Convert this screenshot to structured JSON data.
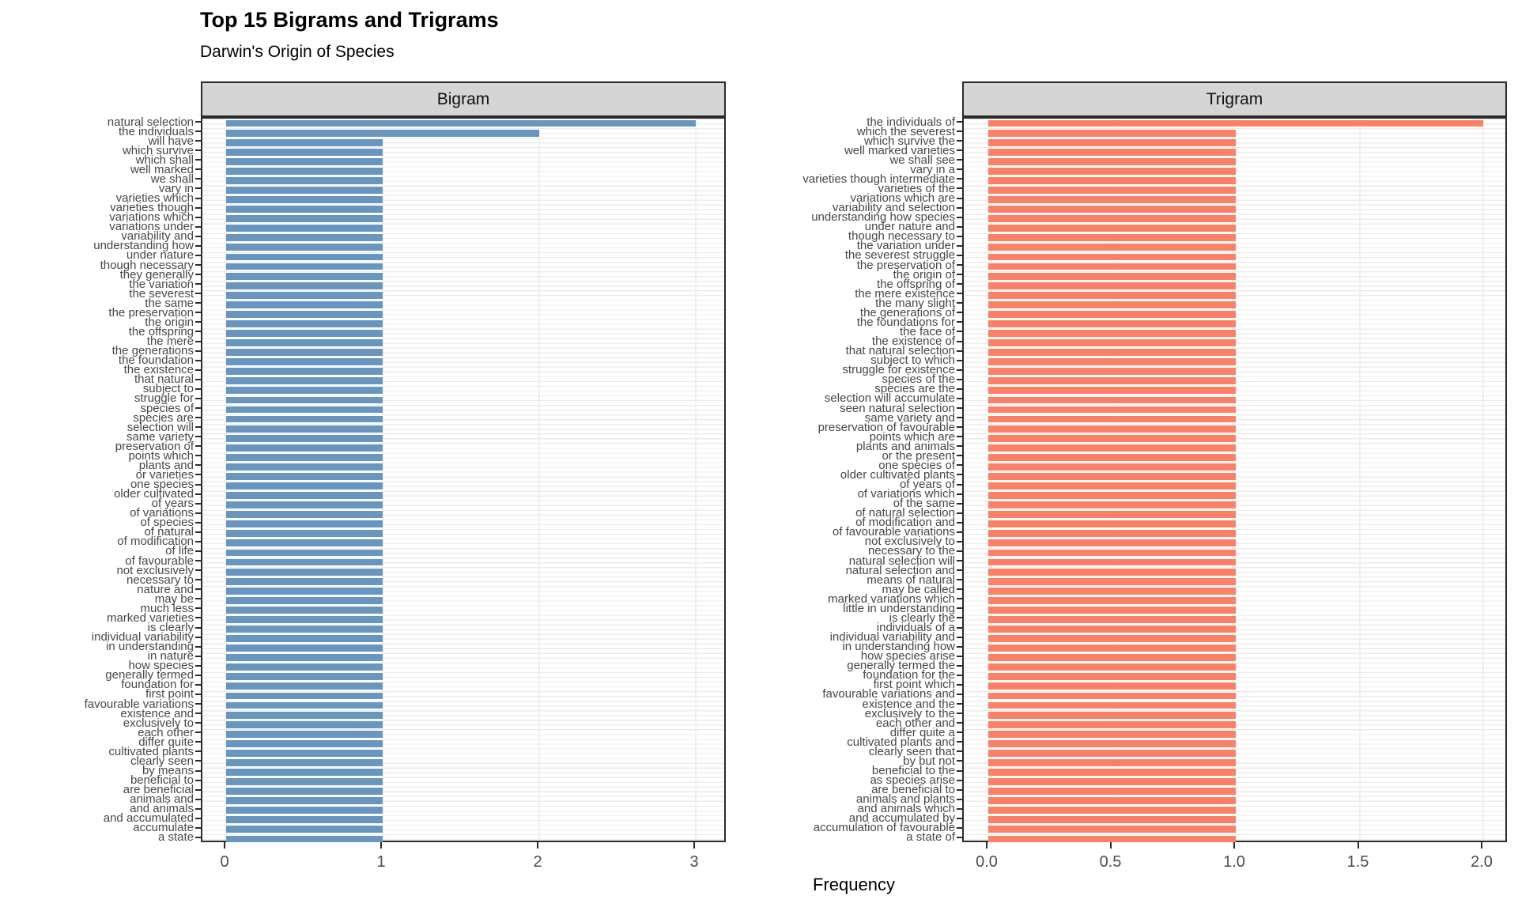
{
  "title": "Top 15 Bigrams and Trigrams",
  "subtitle": "Darwin's Origin of Species",
  "xlabel": "Frequency",
  "colors": {
    "bigram_bar": "#6996BE",
    "trigram_bar": "#FA8168",
    "strip_bg": "#D5D5D5",
    "panel_border": "#2B2B2B",
    "grid": "#EFEFEF",
    "axis_text": "#4D4D4D",
    "label_text": "#474747"
  },
  "chart_data": [
    {
      "type": "bar",
      "orientation": "horizontal",
      "panel": "Bigram",
      "xlabel": "Frequency",
      "x_tick_values": [
        0,
        1,
        2,
        3
      ],
      "x_tick_labels": [
        "0",
        "1",
        "2",
        "3"
      ],
      "xlim": [
        -0.15,
        3.15
      ],
      "grid": "on",
      "categories": [
        "natural selection",
        "the individuals",
        "will have",
        "which survive",
        "which shall",
        "well marked",
        "we shall",
        "vary in",
        "varieties which",
        "varieties though",
        "variations which",
        "variations under",
        "variability and",
        "understanding how",
        "under nature",
        "though necessary",
        "they generally",
        "the variation",
        "the severest",
        "the same",
        "the preservation",
        "the origin",
        "the offspring",
        "the mere",
        "the generations",
        "the foundation",
        "the existence",
        "that natural",
        "subject to",
        "struggle for",
        "species of",
        "species are",
        "selection will",
        "same variety",
        "preservation of",
        "points which",
        "plants and",
        "or varieties",
        "one species",
        "older cultivated",
        "of years",
        "of variations",
        "of species",
        "of natural",
        "of modification",
        "of life",
        "of favourable",
        "not exclusively",
        "necessary to",
        "nature and",
        "may be",
        "much less",
        "marked varieties",
        "is clearly",
        "individual variability",
        "in understanding",
        "in nature",
        "how species",
        "generally termed",
        "foundation for",
        "first point",
        "favourable variations",
        "existence and",
        "exclusively to",
        "each other",
        "differ quite",
        "cultivated plants",
        "clearly seen",
        "by means",
        "beneficial to",
        "are beneficial",
        "animals and",
        "and animals",
        "and accumulated",
        "accumulate",
        "a state"
      ],
      "values": [
        3,
        2,
        1,
        1,
        1,
        1,
        1,
        1,
        1,
        1,
        1,
        1,
        1,
        1,
        1,
        1,
        1,
        1,
        1,
        1,
        1,
        1,
        1,
        1,
        1,
        1,
        1,
        1,
        1,
        1,
        1,
        1,
        1,
        1,
        1,
        1,
        1,
        1,
        1,
        1,
        1,
        1,
        1,
        1,
        1,
        1,
        1,
        1,
        1,
        1,
        1,
        1,
        1,
        1,
        1,
        1,
        1,
        1,
        1,
        1,
        1,
        1,
        1,
        1,
        1,
        1,
        1,
        1,
        1,
        1,
        1,
        1,
        1,
        1,
        1,
        1
      ]
    },
    {
      "type": "bar",
      "orientation": "horizontal",
      "panel": "Trigram",
      "xlabel": "Frequency",
      "x_tick_values": [
        0,
        0.5,
        1,
        1.5,
        2
      ],
      "x_tick_labels": [
        "0.0",
        "0.5",
        "1.0",
        "1.5",
        "2.0"
      ],
      "xlim": [
        -0.1,
        2.1
      ],
      "grid": "on",
      "categories": [
        "the individuals of",
        "which the severest",
        "which survive the",
        "well marked varieties",
        "we shall see",
        "vary in a",
        "varieties though intermediate",
        "varieties of the",
        "variations which are",
        "variability and selection",
        "understanding how species",
        "under nature and",
        "though necessary to",
        "the variation under",
        "the severest struggle",
        "the preservation of",
        "the origin of",
        "the offspring of",
        "the mere existence",
        "the many slight",
        "the generations of",
        "the foundations for",
        "the face of",
        "the existence of",
        "that natural selection",
        "subject to which",
        "struggle for existence",
        "species of the",
        "species are the",
        "selection will accumulate",
        "seen natural selection",
        "same variety and",
        "preservation of favourable",
        "points which are",
        "plants and animals",
        "or the present",
        "one species of",
        "older cultivated plants",
        "of years of",
        "of variations which",
        "of the same",
        "of natural selection",
        "of modification and",
        "of favourable variations",
        "not exclusively to",
        "necessary to the",
        "natural selection will",
        "natural selection and",
        "means of natural",
        "may be called",
        "marked variations which",
        "little in understanding",
        "is clearly the",
        "individuals of a",
        "individual variability and",
        "in understanding how",
        "how species arise",
        "generally termed the",
        "foundation for the",
        "first point which",
        "favourable variations and",
        "existence and the",
        "exclusively to the",
        "each other and",
        "differ quite a",
        "cultivated plants and",
        "clearly seen that",
        "by but not",
        "beneficial to the",
        "as species arise",
        "are beneficial to",
        "animals and plants",
        "and animals which",
        "and accumulated by",
        "accumulation of favourable",
        "a state of"
      ],
      "values": [
        2,
        1,
        1,
        1,
        1,
        1,
        1,
        1,
        1,
        1,
        1,
        1,
        1,
        1,
        1,
        1,
        1,
        1,
        1,
        1,
        1,
        1,
        1,
        1,
        1,
        1,
        1,
        1,
        1,
        1,
        1,
        1,
        1,
        1,
        1,
        1,
        1,
        1,
        1,
        1,
        1,
        1,
        1,
        1,
        1,
        1,
        1,
        1,
        1,
        1,
        1,
        1,
        1,
        1,
        1,
        1,
        1,
        1,
        1,
        1,
        1,
        1,
        1,
        1,
        1,
        1,
        1,
        1,
        1,
        1,
        1,
        1,
        1,
        1,
        1,
        1
      ]
    }
  ]
}
